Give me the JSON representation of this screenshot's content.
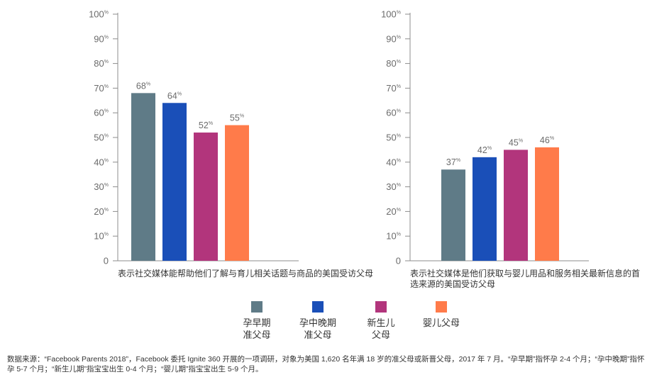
{
  "chart_data": [
    {
      "type": "bar",
      "categories": [
        "孕早期\n准父母",
        "孕中晚期\n准父母",
        "新生儿\n父母",
        "婴儿父母"
      ],
      "values": [
        68,
        64,
        52,
        55
      ],
      "colors": [
        "#5f7b87",
        "#1a4fb8",
        "#b2357c",
        "#ff7b4a"
      ],
      "unit": "%",
      "ylim": [
        0,
        100
      ],
      "yticks": [
        0,
        10,
        20,
        30,
        40,
        50,
        60,
        70,
        80,
        90,
        100
      ],
      "xlabel": "表示社交媒体能帮助他们了解与育儿相关话题与商品的美国受访父母",
      "legend": "bottom"
    },
    {
      "type": "bar",
      "categories": [
        "孕早期\n准父母",
        "孕中晚期\n准父母",
        "新生儿\n父母",
        "婴儿父母"
      ],
      "values": [
        37,
        42,
        45,
        46
      ],
      "colors": [
        "#5f7b87",
        "#1a4fb8",
        "#b2357c",
        "#ff7b4a"
      ],
      "unit": "%",
      "ylim": [
        0,
        100
      ],
      "yticks": [
        0,
        10,
        20,
        30,
        40,
        50,
        60,
        70,
        80,
        90,
        100
      ],
      "xlabel": "表示社交媒体是他们获取与婴儿用品和服务相关最新信息的首选来源的美国受访父母",
      "legend": "bottom"
    }
  ],
  "footnote": "数据来源：“Facebook Parents 2018”，Facebook 委托 Ignite 360 开展的一项调研，对象为美国 1,620 名年满 18 岁的准父母或新晋父母，2017 年 7 月。“孕早期”指怀孕 2-4 个月；“孕中晚期”指怀孕 5-7 个月；“新生儿期”指宝宝出生 0-4 个月；“婴儿期”指宝宝出生 5-9 个月。"
}
